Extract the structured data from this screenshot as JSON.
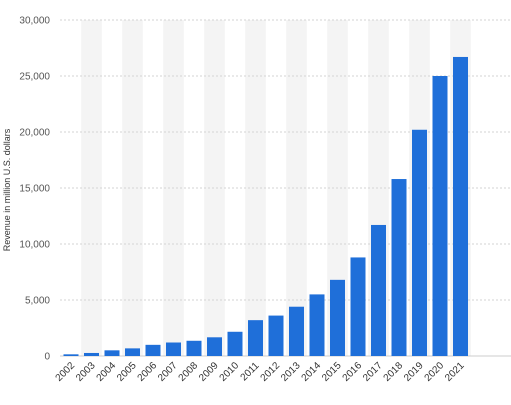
{
  "chart_data": {
    "type": "bar",
    "title": "",
    "xlabel": "",
    "ylabel": "Revenue in million U.S. dollars",
    "ylim": [
      0,
      30000
    ],
    "yticks": [
      0,
      5000,
      10000,
      15000,
      20000,
      25000,
      30000
    ],
    "ytick_labels": [
      "0",
      "5,000",
      "10,000",
      "15,000",
      "20,000",
      "25,000",
      "30,000"
    ],
    "grid": true,
    "legend": "none",
    "categories": [
      "2002",
      "2003",
      "2004",
      "2005",
      "2006",
      "2007",
      "2008",
      "2009",
      "2010",
      "2011",
      "2012",
      "2013",
      "2014",
      "2015",
      "2016",
      "2017",
      "2018",
      "2019",
      "2020",
      "2021"
    ],
    "values": [
      150,
      270,
      506,
      682,
      997,
      1205,
      1359,
      1670,
      2163,
      3200,
      3609,
      4400,
      5500,
      6800,
      8800,
      11700,
      15800,
      20200,
      25000,
      26700
    ],
    "colors": {
      "bar": "#1f6fd9",
      "band": "#f4f4f4",
      "grid": "#d3d3d3",
      "baseline": "#cccccc"
    }
  }
}
